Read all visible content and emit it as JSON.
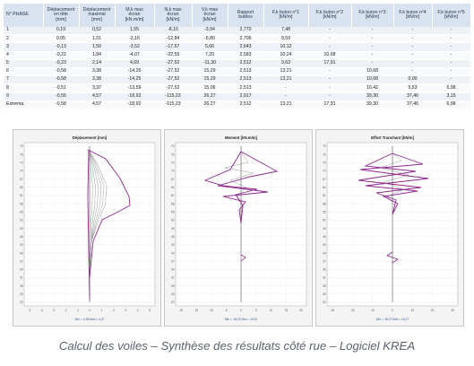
{
  "table": {
    "headers": [
      "N° PHASE",
      "Déplacement\nen tête\n[mm]",
      "Déplacement\nmaximal\n[mm]",
      "M,k max\nécran\n[kN.m/m]",
      "N,k max\nécran\n[kN/m]",
      "V,k max\nécran\n[kN/m]",
      "Rapport\nbutées",
      "F,k buton n°1\n[kN/m]",
      "F,k buton n°2\n[kN/m]",
      "F,k buton n°3\n[kN/m]",
      "F,k buton n°4\n[kN/m]",
      "F,k buton n°5\n[kN/m]"
    ],
    "rows": [
      [
        "1",
        "0,19",
        "0,52",
        "1,55",
        "-8,16",
        "-3,94",
        "2,770",
        "7,48",
        "-",
        "-",
        "-",
        "-"
      ],
      [
        "2",
        "0,05",
        "1,01",
        "-2,16",
        "-12,84",
        "-5,80",
        "2,706",
        "9,59",
        "-",
        "-",
        "-",
        "-"
      ],
      [
        "3",
        "-0,13",
        "1,50",
        "-3,52",
        "-17,67",
        "5,66",
        "2,643",
        "10,12",
        "-",
        "-",
        "-",
        "-"
      ],
      [
        "4",
        "-0,22",
        "1,84",
        "-4,07",
        "-22,55",
        "7,20",
        "2,583",
        "10,24",
        "10,68",
        "-",
        "-",
        "-"
      ],
      [
        "5",
        "-0,23",
        "2,14",
        "4,69",
        "-27,52",
        "-11,30",
        "2,512",
        "9,63",
        "17,91",
        "-",
        "-",
        "-"
      ],
      [
        "6",
        "-0,58",
        "3,38",
        "-14,25",
        "-27,52",
        "15,29",
        "2,513",
        "13,21",
        "-",
        "10,68",
        "-",
        "-"
      ],
      [
        "7",
        "-0,58",
        "3,38",
        "-14,25",
        "-27,52",
        "15,29",
        "2,513",
        "13,21",
        "-",
        "10,68",
        "0,00",
        "-"
      ],
      [
        "8",
        "-0,51",
        "3,37",
        "-13,59",
        "-27,52",
        "15,06",
        "2,513",
        "-",
        "-",
        "10,42",
        "5,53",
        "6,98"
      ],
      [
        "9",
        "-0,55",
        "4,57",
        "-18,92",
        "-115,23",
        "26,27",
        "2,917",
        "-",
        "-",
        "39,30",
        "37,46",
        "3,15"
      ],
      [
        "Extrema",
        "-0,58",
        "4,57",
        "-18,92",
        "-115,23",
        "26,27",
        "2,512",
        "13,21",
        "17,91",
        "39,30",
        "37,46",
        "6,98"
      ]
    ]
  },
  "charts": [
    {
      "title": "Déplacement [mm]",
      "y_ticks": [
        "79",
        "76",
        "73",
        "70",
        "67",
        "64",
        "61",
        "58",
        "55",
        "52",
        "49",
        "46",
        "43",
        "40",
        "37",
        "34",
        "31",
        "28",
        "25",
        "22"
      ],
      "x_ticks": [
        "-5",
        "-4",
        "-3",
        "-2",
        "-1",
        "0",
        "1",
        "2",
        "3",
        "4",
        "5"
      ],
      "footer": "Min = -0,58  Max = 4,57"
    },
    {
      "title": "Moment [kN.m/m]",
      "y_ticks": [
        "79",
        "76",
        "73",
        "70",
        "67",
        "64",
        "61",
        "58",
        "55",
        "52",
        "49",
        "46",
        "43",
        "40",
        "37",
        "34",
        "31",
        "28",
        "25",
        "22"
      ],
      "x_ticks": [
        "-20",
        "-15",
        "-10",
        "-5",
        "0",
        "5",
        "10",
        "15",
        "20"
      ],
      "footer": "Min = -18,92  Max = 18,92"
    },
    {
      "title": "Effort Tranchant [kN/m]",
      "y_ticks": [
        "79",
        "76",
        "73",
        "70",
        "67",
        "64",
        "61",
        "58",
        "55",
        "52",
        "49",
        "46",
        "43",
        "40",
        "37",
        "34",
        "31",
        "28",
        "25",
        "22"
      ],
      "x_ticks": [
        "-30",
        "-20",
        "-10",
        "0",
        "10",
        "20",
        "30"
      ],
      "footer": "Min = -26,27  Max = 26,27"
    }
  ],
  "caption": "Calcul des voiles – Synthèse des résultats côté rue – Logiciel KREA",
  "colors": {
    "envelope": "#8e2a8e",
    "phase": "#888888",
    "header_bg": "#d9e3f0"
  }
}
